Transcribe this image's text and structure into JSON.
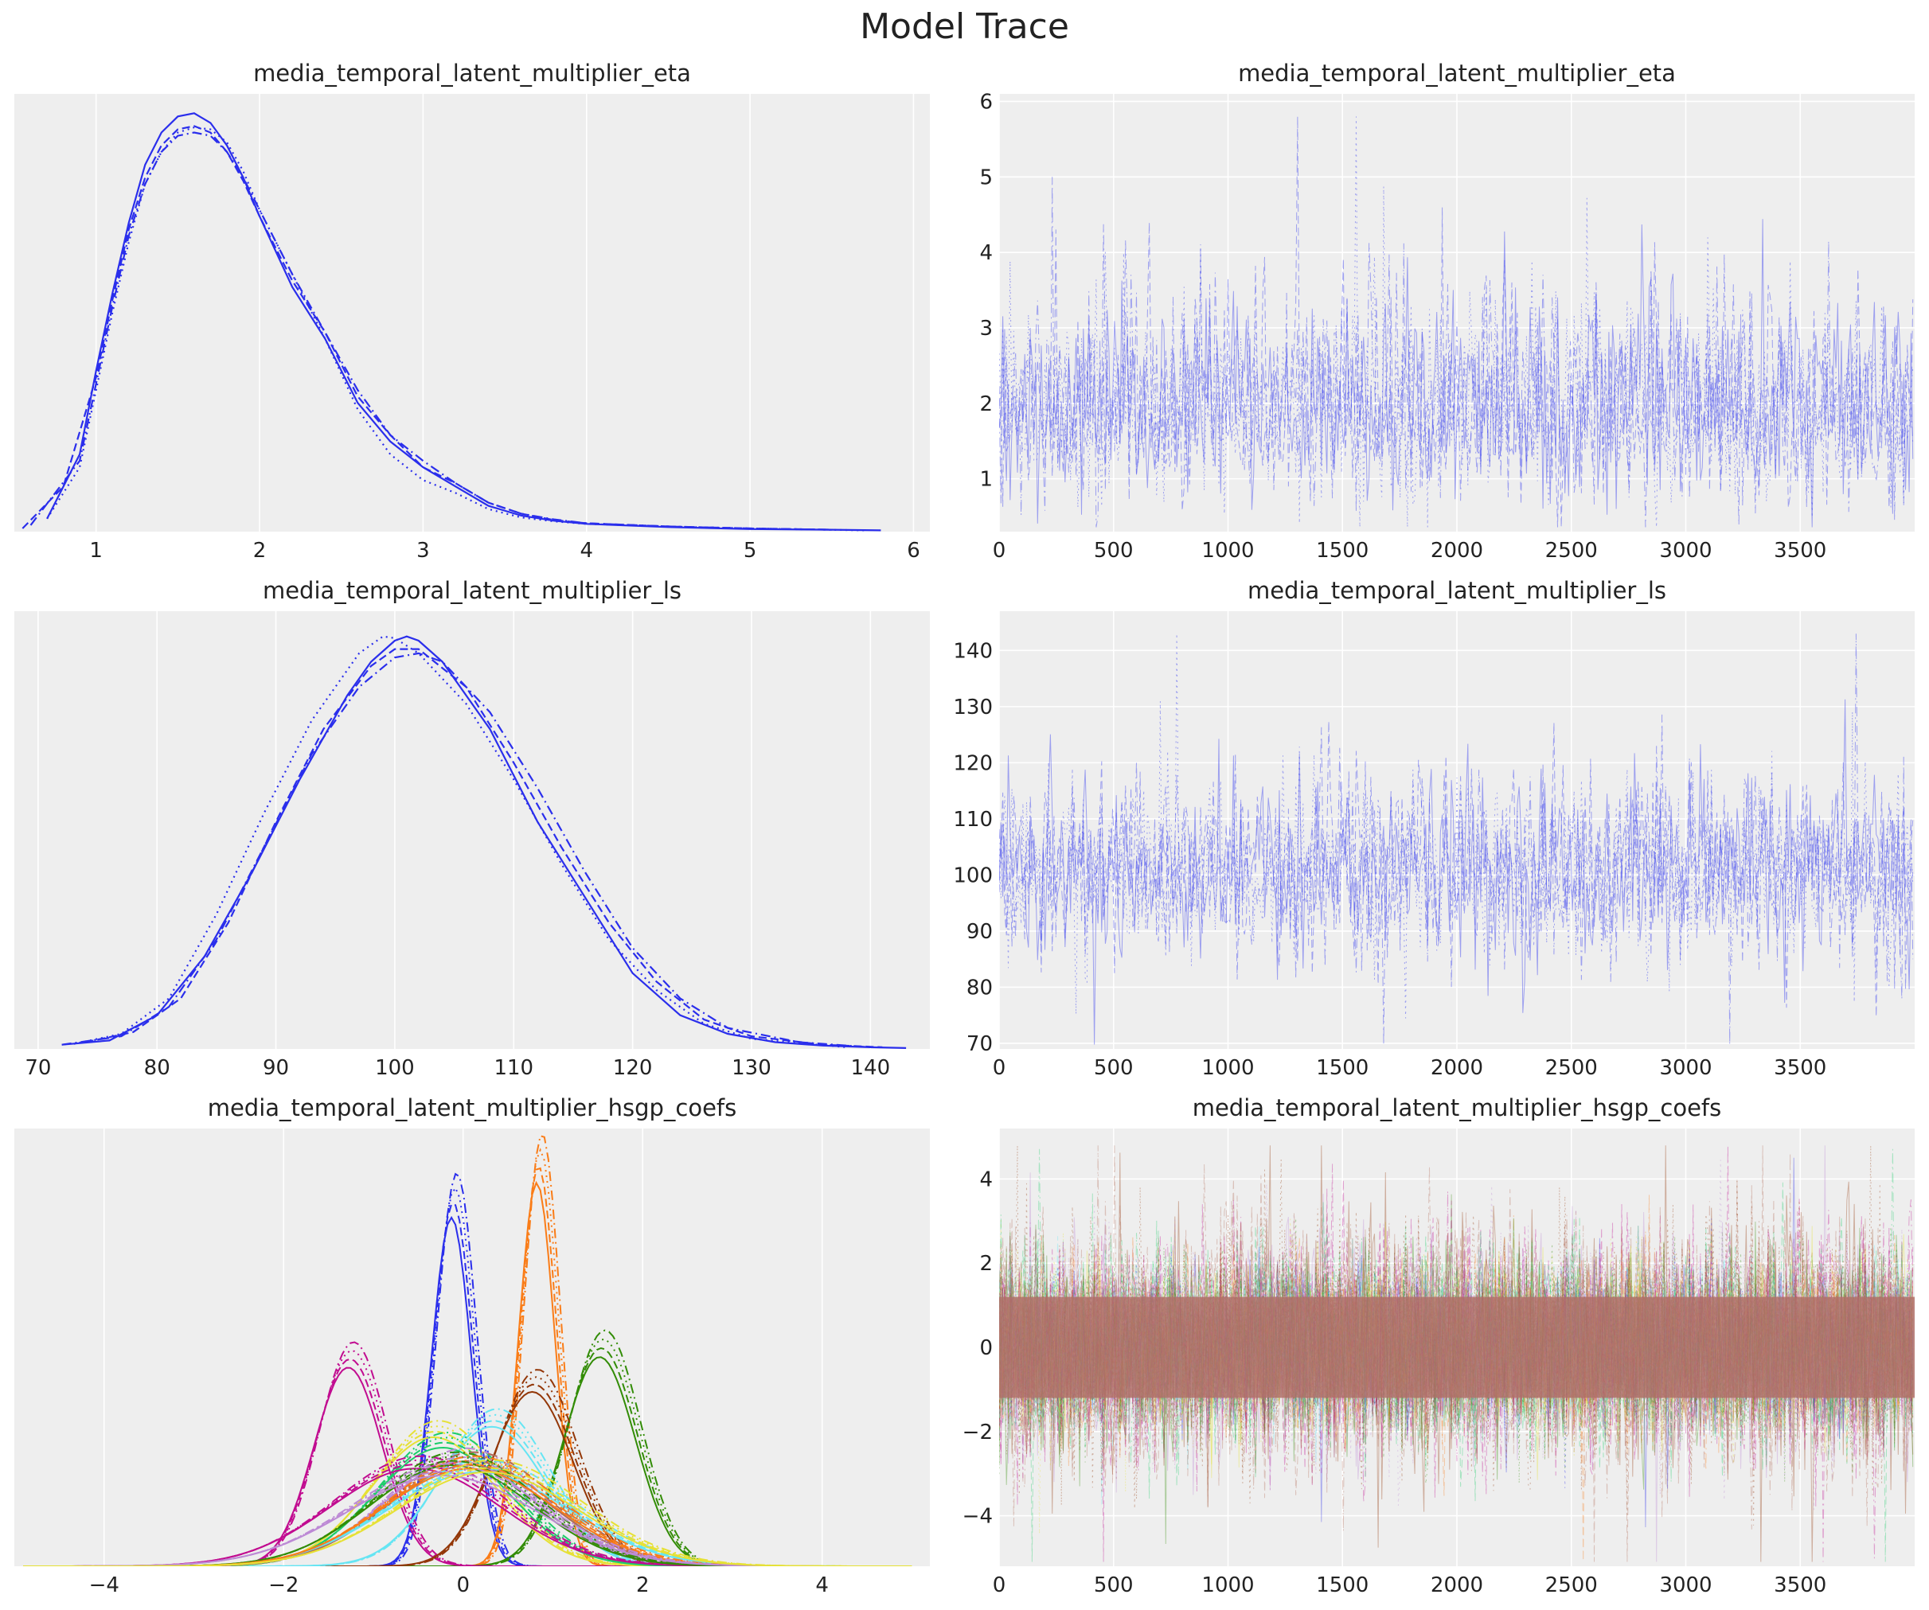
{
  "figure_title": "Model Trace",
  "colors": {
    "panel_bg": "#eeeeee",
    "grid": "#ffffff",
    "kde": "#2a2eec",
    "trace": "#4a4ff0",
    "coef_palette": [
      "#2a2eec",
      "#fa7c17",
      "#328c06",
      "#c10c90",
      "#933708",
      "#65e5f3",
      "#e6e135",
      "#1ccd6a",
      "#bd8ad5",
      "#b16b57"
    ]
  },
  "chart_data": [
    {
      "type": "line",
      "plot": "kde",
      "title": "media_temporal_latent_multiplier_eta",
      "xlim": [
        0.5,
        6.1
      ],
      "xticks": [
        1,
        2,
        3,
        4,
        5,
        6
      ],
      "xtick_labels": [
        "1",
        "2",
        "3",
        "4",
        "5",
        "6"
      ],
      "yticks": [],
      "ylim": [
        0,
        0.68
      ],
      "series": [
        {
          "style": "solid",
          "x": [
            0.7,
            0.9,
            1.0,
            1.1,
            1.2,
            1.3,
            1.4,
            1.5,
            1.6,
            1.7,
            1.8,
            1.9,
            2.0,
            2.2,
            2.4,
            2.6,
            2.8,
            3.0,
            3.2,
            3.4,
            3.6,
            3.8,
            4.0,
            4.5,
            5.0,
            5.5,
            5.8
          ],
          "y": [
            0.02,
            0.12,
            0.25,
            0.37,
            0.48,
            0.57,
            0.62,
            0.645,
            0.65,
            0.635,
            0.6,
            0.55,
            0.49,
            0.38,
            0.3,
            0.2,
            0.14,
            0.1,
            0.07,
            0.04,
            0.025,
            0.017,
            0.012,
            0.007,
            0.004,
            0.003,
            0.002
          ]
        },
        {
          "style": "dashed",
          "x": [
            0.55,
            0.8,
            1.0,
            1.1,
            1.2,
            1.3,
            1.4,
            1.5,
            1.6,
            1.7,
            1.8,
            1.9,
            2.0,
            2.2,
            2.4,
            2.6,
            2.8,
            3.0,
            3.2,
            3.4,
            3.6,
            3.8,
            4.0,
            4.5,
            5.0,
            5.5
          ],
          "y": [
            0.005,
            0.07,
            0.24,
            0.36,
            0.47,
            0.55,
            0.6,
            0.625,
            0.63,
            0.62,
            0.59,
            0.545,
            0.49,
            0.39,
            0.31,
            0.21,
            0.15,
            0.1,
            0.075,
            0.045,
            0.028,
            0.018,
            0.013,
            0.008,
            0.005,
            0.003
          ]
        },
        {
          "style": "dotted",
          "x": [
            0.7,
            0.9,
            1.0,
            1.1,
            1.2,
            1.3,
            1.4,
            1.5,
            1.6,
            1.7,
            1.8,
            1.9,
            2.0,
            2.2,
            2.4,
            2.6,
            2.8,
            3.0,
            3.2,
            3.4,
            3.6,
            3.8,
            4.0,
            4.5,
            5.0,
            5.7
          ],
          "y": [
            0.02,
            0.1,
            0.22,
            0.34,
            0.45,
            0.54,
            0.59,
            0.62,
            0.628,
            0.625,
            0.605,
            0.56,
            0.5,
            0.4,
            0.3,
            0.19,
            0.12,
            0.08,
            0.06,
            0.035,
            0.022,
            0.016,
            0.012,
            0.008,
            0.005,
            0.002
          ]
        },
        {
          "style": "dashdot",
          "x": [
            0.6,
            0.9,
            1.0,
            1.1,
            1.2,
            1.3,
            1.4,
            1.5,
            1.6,
            1.7,
            1.8,
            1.9,
            2.0,
            2.2,
            2.4,
            2.6,
            2.8,
            3.0,
            3.2,
            3.4,
            3.6,
            3.8,
            4.0,
            4.5,
            5.0,
            5.5
          ],
          "y": [
            0.01,
            0.11,
            0.23,
            0.35,
            0.46,
            0.54,
            0.59,
            0.615,
            0.62,
            0.615,
            0.59,
            0.55,
            0.5,
            0.4,
            0.31,
            0.22,
            0.15,
            0.11,
            0.075,
            0.045,
            0.028,
            0.019,
            0.013,
            0.008,
            0.005,
            0.003
          ]
        }
      ]
    },
    {
      "type": "line",
      "plot": "trace",
      "title": "media_temporal_latent_multiplier_eta",
      "xlim": [
        0,
        4000
      ],
      "ylim": [
        0.3,
        6.1
      ],
      "xticks": [
        0,
        500,
        1000,
        1500,
        2000,
        2500,
        3000,
        3500
      ],
      "xtick_labels": [
        "0",
        "500",
        "1000",
        "1500",
        "2000",
        "2500",
        "3000",
        "3500"
      ],
      "yticks": [
        1,
        2,
        3,
        4,
        5,
        6
      ],
      "ytick_labels": [
        "1",
        "2",
        "3",
        "4",
        "5",
        "6"
      ],
      "draws": 4000,
      "chains": 4,
      "center": 1.85,
      "spread": 0.55,
      "tail_max": 5.8
    },
    {
      "type": "line",
      "plot": "kde",
      "title": "media_temporal_latent_multiplier_ls",
      "xlim": [
        68,
        145
      ],
      "xticks": [
        70,
        80,
        90,
        100,
        110,
        120,
        130,
        140
      ],
      "xtick_labels": [
        "70",
        "80",
        "90",
        "100",
        "110",
        "120",
        "130",
        "140"
      ],
      "yticks": [],
      "ylim": [
        0,
        0.052
      ],
      "series": [
        {
          "style": "solid",
          "x": [
            72,
            76,
            80,
            84,
            88,
            92,
            96,
            98,
            100,
            101,
            102,
            104,
            108,
            112,
            116,
            120,
            124,
            128,
            132,
            136,
            140,
            143
          ],
          "y": [
            0.0005,
            0.001,
            0.004,
            0.011,
            0.021,
            0.032,
            0.042,
            0.046,
            0.0485,
            0.049,
            0.0485,
            0.046,
            0.038,
            0.027,
            0.018,
            0.009,
            0.004,
            0.0018,
            0.0008,
            0.0004,
            0.0002,
            0.0001
          ]
        },
        {
          "style": "dashed",
          "x": [
            74,
            78,
            82,
            86,
            90,
            94,
            98,
            100,
            102,
            106,
            110,
            114,
            118,
            122,
            126,
            130,
            136,
            141
          ],
          "y": [
            0.0008,
            0.002,
            0.006,
            0.015,
            0.027,
            0.038,
            0.0455,
            0.0475,
            0.0475,
            0.043,
            0.034,
            0.024,
            0.015,
            0.008,
            0.0035,
            0.0015,
            0.0005,
            0.0002
          ]
        },
        {
          "style": "dotted",
          "x": [
            73,
            77,
            81,
            85,
            89,
            93,
            97,
            99,
            100,
            102,
            106,
            110,
            114,
            118,
            122,
            126,
            130,
            138
          ],
          "y": [
            0.0006,
            0.0018,
            0.006,
            0.016,
            0.028,
            0.039,
            0.047,
            0.049,
            0.0488,
            0.047,
            0.041,
            0.032,
            0.022,
            0.013,
            0.007,
            0.003,
            0.0012,
            0.0002
          ]
        },
        {
          "style": "dashdot",
          "x": [
            72,
            77,
            81,
            85,
            89,
            93,
            97,
            100,
            102,
            104,
            108,
            112,
            116,
            120,
            124,
            128,
            134,
            140
          ],
          "y": [
            0.0005,
            0.0015,
            0.005,
            0.013,
            0.024,
            0.035,
            0.043,
            0.0465,
            0.047,
            0.046,
            0.04,
            0.031,
            0.021,
            0.012,
            0.006,
            0.0025,
            0.0008,
            0.0002
          ]
        }
      ]
    },
    {
      "type": "line",
      "plot": "trace",
      "title": "media_temporal_latent_multiplier_ls",
      "xlim": [
        0,
        4000
      ],
      "ylim": [
        69,
        147
      ],
      "xticks": [
        0,
        500,
        1000,
        1500,
        2000,
        2500,
        3000,
        3500
      ],
      "xtick_labels": [
        "0",
        "500",
        "1000",
        "1500",
        "2000",
        "2500",
        "3000",
        "3500"
      ],
      "yticks": [
        70,
        80,
        90,
        100,
        110,
        120,
        130,
        140
      ],
      "ytick_labels": [
        "70",
        "80",
        "90",
        "100",
        "110",
        "120",
        "130",
        "140"
      ],
      "draws": 4000,
      "chains": 4,
      "center": 101,
      "spread": 8.5,
      "tail_max": 143
    },
    {
      "type": "line",
      "plot": "kde",
      "title": "media_temporal_latent_multiplier_hsgp_coefs",
      "xlim": [
        -5.0,
        5.2
      ],
      "xticks": [
        -4,
        -2,
        0,
        2,
        4
      ],
      "xtick_labels": [
        "−4",
        "−2",
        "0",
        "2",
        "4"
      ],
      "yticks": [],
      "ylim": [
        0,
        1.18
      ],
      "series": [
        {
          "name_color": 0,
          "mean": -0.1,
          "sd": 0.22,
          "peak": 1.0
        },
        {
          "name_color": 1,
          "mean": 0.85,
          "sd": 0.2,
          "peak": 1.1
        },
        {
          "name_color": 2,
          "mean": 1.55,
          "sd": 0.4,
          "peak": 0.6
        },
        {
          "name_color": 3,
          "mean": -1.25,
          "sd": 0.38,
          "peak": 0.57
        },
        {
          "name_color": 4,
          "mean": 0.8,
          "sd": 0.45,
          "peak": 0.5
        },
        {
          "name_color": 5,
          "mean": 0.35,
          "sd": 0.6,
          "peak": 0.4
        },
        {
          "name_color": 6,
          "mean": -0.3,
          "sd": 0.7,
          "peak": 0.37
        },
        {
          "name_color": 7,
          "mean": -0.2,
          "sd": 0.75,
          "peak": 0.34
        },
        {
          "name_color": 8,
          "mean": 0.0,
          "sd": 0.85,
          "peak": 0.3
        },
        {
          "name_color": 9,
          "mean": 0.1,
          "sd": 0.9,
          "peak": 0.29
        },
        {
          "name_color": 3,
          "mean": -0.5,
          "sd": 0.95,
          "peak": 0.28
        },
        {
          "name_color": 5,
          "mean": 0.2,
          "sd": 1.0,
          "peak": 0.27
        },
        {
          "name_color": 2,
          "mean": -0.1,
          "sd": 0.9,
          "peak": 0.29
        },
        {
          "name_color": 1,
          "mean": 0.1,
          "sd": 0.95,
          "peak": 0.28
        },
        {
          "name_color": 8,
          "mean": -0.2,
          "sd": 1.05,
          "peak": 0.26
        },
        {
          "name_color": 6,
          "mean": 0.3,
          "sd": 1.0,
          "peak": 0.27
        }
      ]
    },
    {
      "type": "line",
      "plot": "trace",
      "title": "media_temporal_latent_multiplier_hsgp_coefs",
      "xlim": [
        0,
        4000
      ],
      "ylim": [
        -5.2,
        5.2
      ],
      "xticks": [
        0,
        500,
        1000,
        1500,
        2000,
        2500,
        3000,
        3500
      ],
      "xtick_labels": [
        "0",
        "500",
        "1000",
        "1500",
        "2000",
        "2500",
        "3000",
        "3500"
      ],
      "yticks": [
        -4,
        -2,
        0,
        2,
        4
      ],
      "ytick_labels": [
        "−4",
        "−2",
        "0",
        "2",
        "4"
      ],
      "draws": 4000,
      "chains": 4,
      "center": 0,
      "spread": 1.0,
      "tail_max": 4.8
    }
  ]
}
